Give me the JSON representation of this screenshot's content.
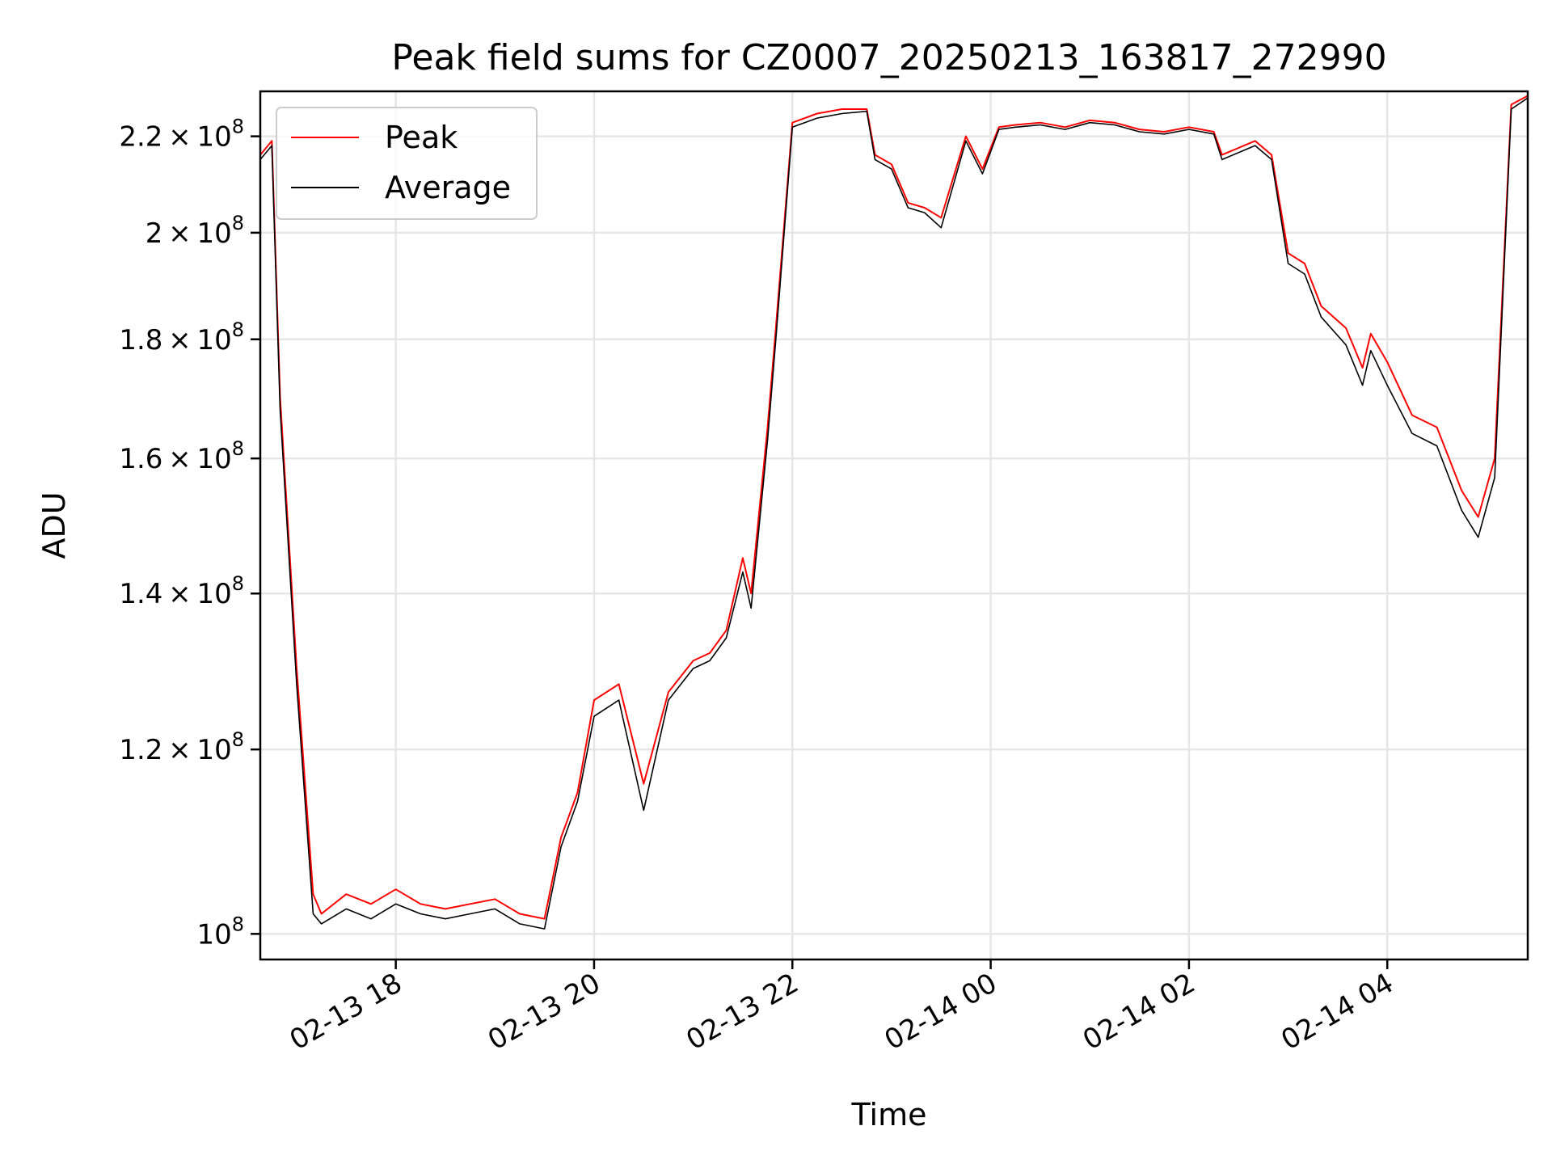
{
  "chart_data": {
    "type": "line",
    "title": "Peak field sums for CZ0007_20250213_163817_272990",
    "xlabel": "Time",
    "ylabel": "ADU",
    "y_scale": "log",
    "grid": true,
    "legend_position": "top-left",
    "x_range": [
      "2025-02-13 16:38",
      "2025-02-14 05:25"
    ],
    "ylim": [
      97500000,
      230000000
    ],
    "x_ticks": [
      "2025-02-13 18:00",
      "2025-02-13 20:00",
      "2025-02-13 22:00",
      "2025-02-14 00:00",
      "2025-02-14 02:00",
      "2025-02-14 04:00"
    ],
    "x_tick_labels": [
      "02-13 18",
      "02-13 20",
      "02-13 22",
      "02-14 00",
      "02-14 02",
      "02-14 04"
    ],
    "y_ticks": [
      {
        "value": 100000000,
        "mantissa": "",
        "base": "10",
        "exp": "8"
      },
      {
        "value": 120000000,
        "mantissa": "1.2",
        "base": "10",
        "exp": "8"
      },
      {
        "value": 140000000,
        "mantissa": "1.4",
        "base": "10",
        "exp": "8"
      },
      {
        "value": 160000000,
        "mantissa": "1.6",
        "base": "10",
        "exp": "8"
      },
      {
        "value": 180000000,
        "mantissa": "1.8",
        "base": "10",
        "exp": "8"
      },
      {
        "value": 200000000,
        "mantissa": "2",
        "base": "10",
        "exp": "8"
      },
      {
        "value": 220000000,
        "mantissa": "2.2",
        "base": "10",
        "exp": "8"
      }
    ],
    "series": [
      {
        "name": "Peak",
        "color": "#ff0000",
        "x": [
          "2025-02-13 16:38",
          "2025-02-13 16:45",
          "2025-02-13 16:50",
          "2025-02-13 17:00",
          "2025-02-13 17:10",
          "2025-02-13 17:15",
          "2025-02-13 17:30",
          "2025-02-13 17:45",
          "2025-02-13 18:00",
          "2025-02-13 18:15",
          "2025-02-13 18:30",
          "2025-02-13 18:45",
          "2025-02-13 19:00",
          "2025-02-13 19:15",
          "2025-02-13 19:30",
          "2025-02-13 19:40",
          "2025-02-13 19:50",
          "2025-02-13 20:00",
          "2025-02-13 20:15",
          "2025-02-13 20:30",
          "2025-02-13 20:45",
          "2025-02-13 21:00",
          "2025-02-13 21:10",
          "2025-02-13 21:20",
          "2025-02-13 21:30",
          "2025-02-13 21:35",
          "2025-02-13 21:45",
          "2025-02-13 21:50",
          "2025-02-13 22:00",
          "2025-02-13 22:15",
          "2025-02-13 22:30",
          "2025-02-13 22:45",
          "2025-02-13 22:50",
          "2025-02-13 23:00",
          "2025-02-13 23:10",
          "2025-02-13 23:20",
          "2025-02-13 23:30",
          "2025-02-13 23:45",
          "2025-02-13 23:55",
          "2025-02-14 00:05",
          "2025-02-14 00:15",
          "2025-02-14 00:30",
          "2025-02-14 00:45",
          "2025-02-14 01:00",
          "2025-02-14 01:15",
          "2025-02-14 01:30",
          "2025-02-14 01:45",
          "2025-02-14 02:00",
          "2025-02-14 02:15",
          "2025-02-14 02:20",
          "2025-02-14 02:40",
          "2025-02-14 02:50",
          "2025-02-14 03:00",
          "2025-02-14 03:10",
          "2025-02-14 03:20",
          "2025-02-14 03:35",
          "2025-02-14 03:45",
          "2025-02-14 03:50",
          "2025-02-14 04:00",
          "2025-02-14 04:15",
          "2025-02-14 04:30",
          "2025-02-14 04:45",
          "2025-02-14 04:55",
          "2025-02-14 05:05",
          "2025-02-14 05:15",
          "2025-02-14 05:25"
        ],
        "values": [
          216000000,
          219000000,
          170000000,
          130000000,
          104000000,
          102000000,
          104000000,
          103000000,
          104500000,
          103000000,
          102500000,
          103000000,
          103500000,
          102000000,
          101500000,
          110000000,
          115000000,
          126000000,
          128000000,
          116000000,
          127000000,
          131000000,
          132000000,
          135000000,
          145000000,
          140000000,
          165000000,
          182000000,
          223000000,
          225000000,
          226000000,
          226000000,
          216000000,
          214000000,
          206000000,
          205000000,
          203000000,
          220000000,
          213000000,
          222000000,
          222500000,
          223000000,
          222000000,
          223500000,
          223000000,
          221500000,
          221000000,
          222000000,
          221000000,
          216000000,
          219000000,
          216000000,
          196000000,
          194000000,
          186000000,
          182000000,
          175000000,
          181000000,
          176000000,
          167000000,
          165000000,
          155000000,
          151000000,
          160000000,
          227000000,
          229000000
        ]
      },
      {
        "name": "Average",
        "color": "#000000",
        "x": [
          "2025-02-13 16:38",
          "2025-02-13 16:45",
          "2025-02-13 16:50",
          "2025-02-13 17:00",
          "2025-02-13 17:10",
          "2025-02-13 17:15",
          "2025-02-13 17:30",
          "2025-02-13 17:45",
          "2025-02-13 18:00",
          "2025-02-13 18:15",
          "2025-02-13 18:30",
          "2025-02-13 18:45",
          "2025-02-13 19:00",
          "2025-02-13 19:15",
          "2025-02-13 19:30",
          "2025-02-13 19:40",
          "2025-02-13 19:50",
          "2025-02-13 20:00",
          "2025-02-13 20:15",
          "2025-02-13 20:30",
          "2025-02-13 20:45",
          "2025-02-13 21:00",
          "2025-02-13 21:10",
          "2025-02-13 21:20",
          "2025-02-13 21:30",
          "2025-02-13 21:35",
          "2025-02-13 21:45",
          "2025-02-13 21:50",
          "2025-02-13 22:00",
          "2025-02-13 22:15",
          "2025-02-13 22:30",
          "2025-02-13 22:45",
          "2025-02-13 22:50",
          "2025-02-13 23:00",
          "2025-02-13 23:10",
          "2025-02-13 23:20",
          "2025-02-13 23:30",
          "2025-02-13 23:45",
          "2025-02-13 23:55",
          "2025-02-14 00:05",
          "2025-02-14 00:15",
          "2025-02-14 00:30",
          "2025-02-14 00:45",
          "2025-02-14 01:00",
          "2025-02-14 01:15",
          "2025-02-14 01:30",
          "2025-02-14 01:45",
          "2025-02-14 02:00",
          "2025-02-14 02:15",
          "2025-02-14 02:20",
          "2025-02-14 02:40",
          "2025-02-14 02:50",
          "2025-02-14 03:00",
          "2025-02-14 03:10",
          "2025-02-14 03:20",
          "2025-02-14 03:35",
          "2025-02-14 03:45",
          "2025-02-14 03:50",
          "2025-02-14 04:00",
          "2025-02-14 04:15",
          "2025-02-14 04:30",
          "2025-02-14 04:45",
          "2025-02-14 04:55",
          "2025-02-14 05:05",
          "2025-02-14 05:15",
          "2025-02-14 05:25"
        ],
        "values": [
          215000000,
          218000000,
          168000000,
          128000000,
          102000000,
          101000000,
          102500000,
          101500000,
          103000000,
          102000000,
          101500000,
          102000000,
          102500000,
          101000000,
          100500000,
          109000000,
          114000000,
          124000000,
          126000000,
          113000000,
          126000000,
          130000000,
          131000000,
          134000000,
          143000000,
          138000000,
          163000000,
          180000000,
          222000000,
          224000000,
          225000000,
          225500000,
          215000000,
          213000000,
          205000000,
          204000000,
          201000000,
          219000000,
          212000000,
          221500000,
          222000000,
          222500000,
          221500000,
          223000000,
          222500000,
          221000000,
          220500000,
          221500000,
          220500000,
          215000000,
          218000000,
          215000000,
          194000000,
          192000000,
          184000000,
          179000000,
          172000000,
          178000000,
          172000000,
          164000000,
          162000000,
          152000000,
          148000000,
          157000000,
          226000000,
          228500000
        ]
      }
    ]
  }
}
